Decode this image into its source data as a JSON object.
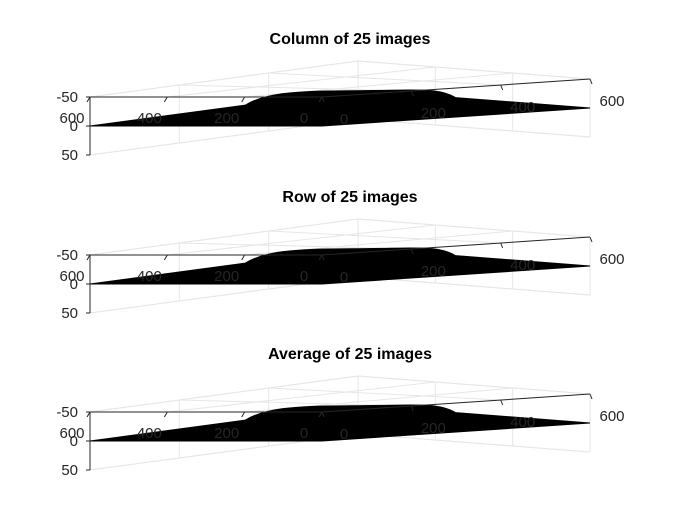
{
  "colors": {
    "surface": "#000000",
    "grid": "#e6e6e6",
    "axis": "#262626",
    "text": "#262626"
  },
  "chart_data": [
    {
      "type": "surface",
      "title": "Column of 25 images",
      "x_ticks": [
        "0",
        "200",
        "400",
        "600"
      ],
      "y_ticks": [
        "0",
        "200",
        "400",
        "600"
      ],
      "z_ticks": [
        "-50",
        "0",
        "50"
      ],
      "xlim": [
        0,
        600
      ],
      "ylim": [
        0,
        600
      ],
      "zlim": [
        -50,
        50
      ],
      "grid": true,
      "surface": {
        "base_z": 0,
        "max_z": 16,
        "shape": "dome",
        "color": "#000000"
      }
    },
    {
      "type": "surface",
      "title": "Row of 25 images",
      "x_ticks": [
        "0",
        "200",
        "400",
        "600"
      ],
      "y_ticks": [
        "0",
        "200",
        "400",
        "600"
      ],
      "z_ticks": [
        "-50",
        "0",
        "50"
      ],
      "xlim": [
        0,
        600
      ],
      "ylim": [
        0,
        600
      ],
      "zlim": [
        -50,
        50
      ],
      "grid": true,
      "surface": {
        "base_z": 0,
        "max_z": 16,
        "shape": "dome",
        "color": "#000000"
      }
    },
    {
      "type": "surface",
      "title": "Average of 25 images",
      "x_ticks": [
        "0",
        "200",
        "400",
        "600"
      ],
      "y_ticks": [
        "0",
        "200",
        "400",
        "600"
      ],
      "z_ticks": [
        "-50",
        "0",
        "50"
      ],
      "xlim": [
        0,
        600
      ],
      "ylim": [
        0,
        600
      ],
      "zlim": [
        -50,
        50
      ],
      "grid": true,
      "surface": {
        "base_z": 0,
        "max_z": 16,
        "shape": "dome",
        "color": "#000000"
      }
    }
  ]
}
